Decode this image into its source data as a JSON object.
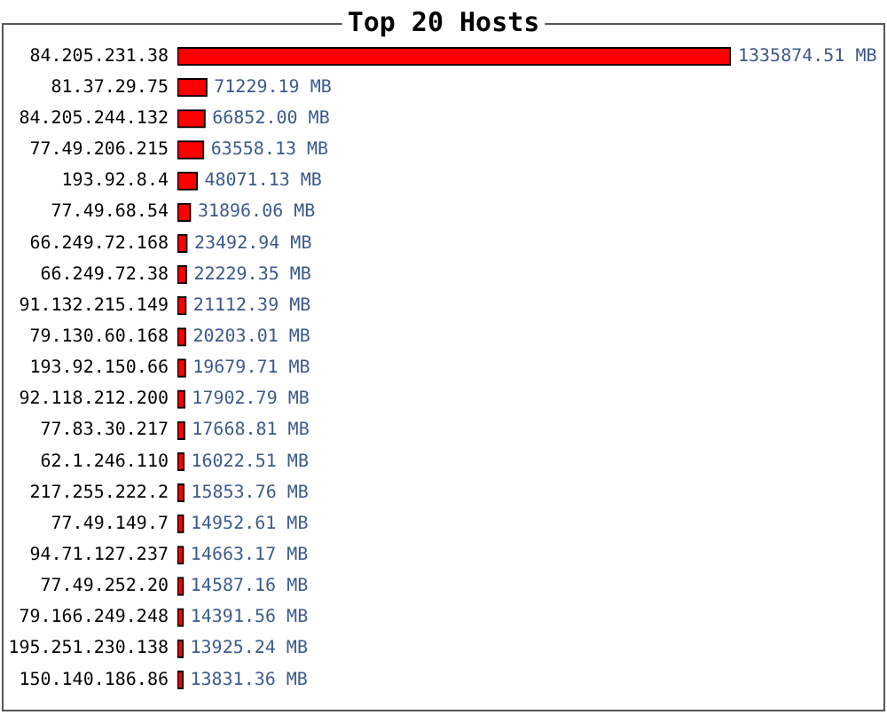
{
  "chart_data": {
    "type": "bar",
    "orientation": "horizontal",
    "title": "Top 20 Hosts",
    "categories": [
      "84.205.231.38",
      "81.37.29.75",
      "84.205.244.132",
      "77.49.206.215",
      "193.92.8.4",
      "77.49.68.54",
      "66.249.72.168",
      "66.249.72.38",
      "91.132.215.149",
      "79.130.60.168",
      "193.92.150.66",
      "92.118.212.200",
      "77.83.30.217",
      "62.1.246.110",
      "217.255.222.2",
      "77.49.149.7",
      "94.71.127.237",
      "77.49.252.20",
      "79.166.249.248",
      "195.251.230.138",
      "150.140.186.86"
    ],
    "values": [
      1335874.51,
      71229.19,
      66852.0,
      63558.13,
      48071.13,
      31896.06,
      23492.94,
      22229.35,
      21112.39,
      20203.01,
      19679.71,
      17902.79,
      17668.81,
      16022.51,
      15853.76,
      14952.61,
      14663.17,
      14587.16,
      14391.56,
      13925.24,
      13831.36
    ],
    "color": "#ff0000",
    "value_labels": [
      "1335874.51 MB",
      "71229.19 MB",
      "66852.00 MB",
      "63558.13 MB",
      "48071.13 MB",
      "31896.06 MB",
      "23492.94 MB",
      "22229.35 MB",
      "21112.39 MB",
      "20203.01 MB",
      "19679.71 MB",
      "17902.79 MB",
      "17668.81 MB",
      "16022.51 MB",
      "15853.76 MB",
      "14952.61 MB",
      "14663.17 MB",
      "14587.16 MB",
      "14391.56 MB",
      "13925.24 MB",
      "13831.36 MB"
    ],
    "tick_labels": "y"
  }
}
